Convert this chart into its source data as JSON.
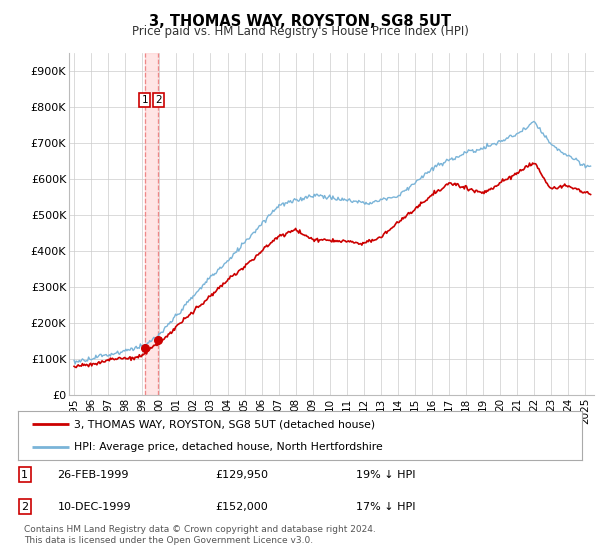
{
  "title": "3, THOMAS WAY, ROYSTON, SG8 5UT",
  "subtitle": "Price paid vs. HM Land Registry's House Price Index (HPI)",
  "legend_line1": "3, THOMAS WAY, ROYSTON, SG8 5UT (detached house)",
  "legend_line2": "HPI: Average price, detached house, North Hertfordshire",
  "footer": "Contains HM Land Registry data © Crown copyright and database right 2024.\nThis data is licensed under the Open Government Licence v3.0.",
  "sale1_date": "26-FEB-1999",
  "sale1_price": "£129,950",
  "sale1_hpi": "19% ↓ HPI",
  "sale2_date": "10-DEC-1999",
  "sale2_price": "£152,000",
  "sale2_hpi": "17% ↓ HPI",
  "ylim": [
    0,
    950000
  ],
  "yticks": [
    0,
    100000,
    200000,
    300000,
    400000,
    500000,
    600000,
    700000,
    800000,
    900000
  ],
  "ytick_labels": [
    "£0",
    "£100K",
    "£200K",
    "£300K",
    "£400K",
    "£500K",
    "£600K",
    "£700K",
    "£800K",
    "£900K"
  ],
  "hpi_color": "#7ab4d8",
  "price_color": "#cc0000",
  "vspan_color": "#ffcccc",
  "vline_color": "#ee8888",
  "background_color": "#ffffff",
  "grid_color": "#cccccc",
  "sale1_x": 1999.15,
  "sale2_x": 1999.93,
  "sale1_y": 129950,
  "sale2_y": 152000,
  "xlim_left": 1994.7,
  "xlim_right": 2025.5,
  "xtick_years": [
    1995,
    1996,
    1997,
    1998,
    1999,
    2000,
    2001,
    2002,
    2003,
    2004,
    2005,
    2006,
    2007,
    2008,
    2009,
    2010,
    2011,
    2012,
    2013,
    2014,
    2015,
    2016,
    2017,
    2018,
    2019,
    2020,
    2021,
    2022,
    2023,
    2024,
    2025
  ]
}
